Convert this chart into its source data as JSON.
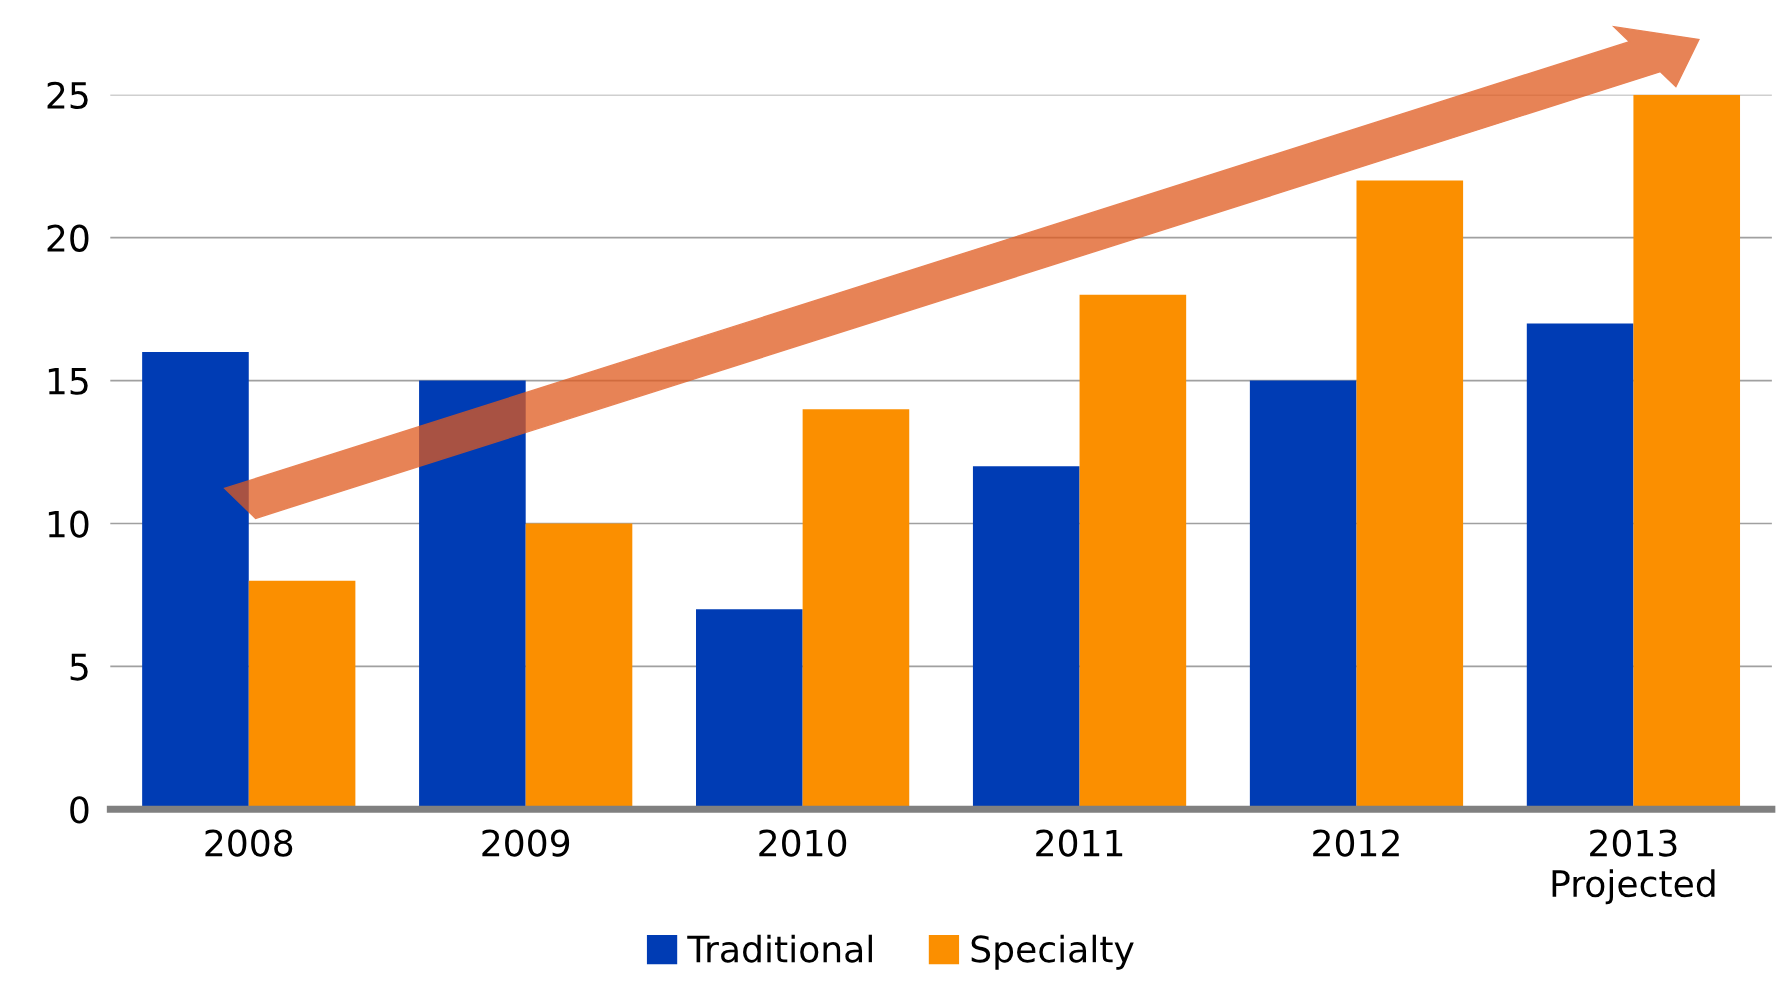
{
  "chart_data": {
    "type": "bar",
    "categories": [
      "2008",
      "2009",
      "2010",
      "2011",
      "2012",
      "2013\nProjected"
    ],
    "series": [
      {
        "name": "Traditional",
        "color": "#003cb4",
        "values": [
          16,
          15,
          7,
          12,
          15,
          17
        ]
      },
      {
        "name": "Specialty",
        "color": "#fb8f00",
        "values": [
          8,
          10,
          14,
          18,
          22,
          25
        ]
      }
    ],
    "ylim": [
      0,
      25
    ],
    "yticks": [
      0,
      5,
      10,
      15,
      20,
      25
    ],
    "grid": "y",
    "legend": "bottom"
  }
}
